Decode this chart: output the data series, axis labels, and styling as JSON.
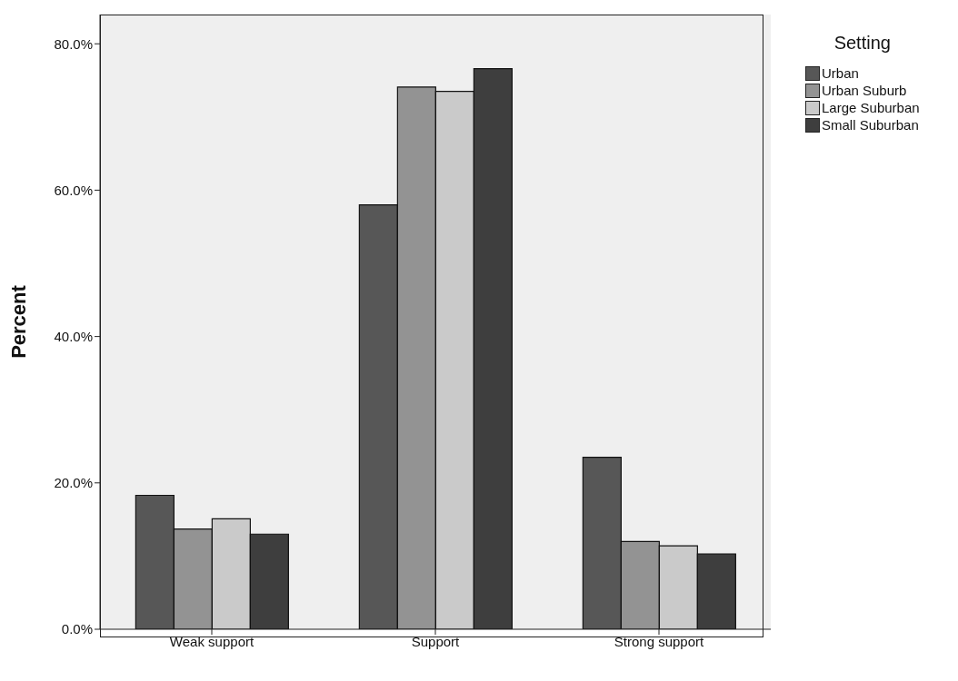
{
  "chart_data": {
    "type": "bar",
    "ylabel": "Percent",
    "legend_title": "Setting",
    "categories": [
      "Weak support",
      "Support",
      "Strong support"
    ],
    "series": [
      {
        "name": "Urban",
        "color": "#575757",
        "values": [
          18.3,
          58.0,
          23.5
        ]
      },
      {
        "name": "Urban Suburb",
        "color": "#939393",
        "values": [
          13.7,
          74.1,
          12.0
        ]
      },
      {
        "name": "Large Suburban",
        "color": "#cacaca",
        "values": [
          15.1,
          73.5,
          11.4
        ]
      },
      {
        "name": "Small Suburban",
        "color": "#3e3e3e",
        "values": [
          13.0,
          76.6,
          10.3
        ]
      }
    ],
    "ylim": [
      0,
      84
    ],
    "yticks": [
      {
        "value": 0,
        "label": "0.0%"
      },
      {
        "value": 20,
        "label": "20.0%"
      },
      {
        "value": 40,
        "label": "40.0%"
      },
      {
        "value": 60,
        "label": "60.0%"
      },
      {
        "value": 80,
        "label": "80.0%"
      }
    ],
    "grid": false,
    "legend": "right"
  }
}
